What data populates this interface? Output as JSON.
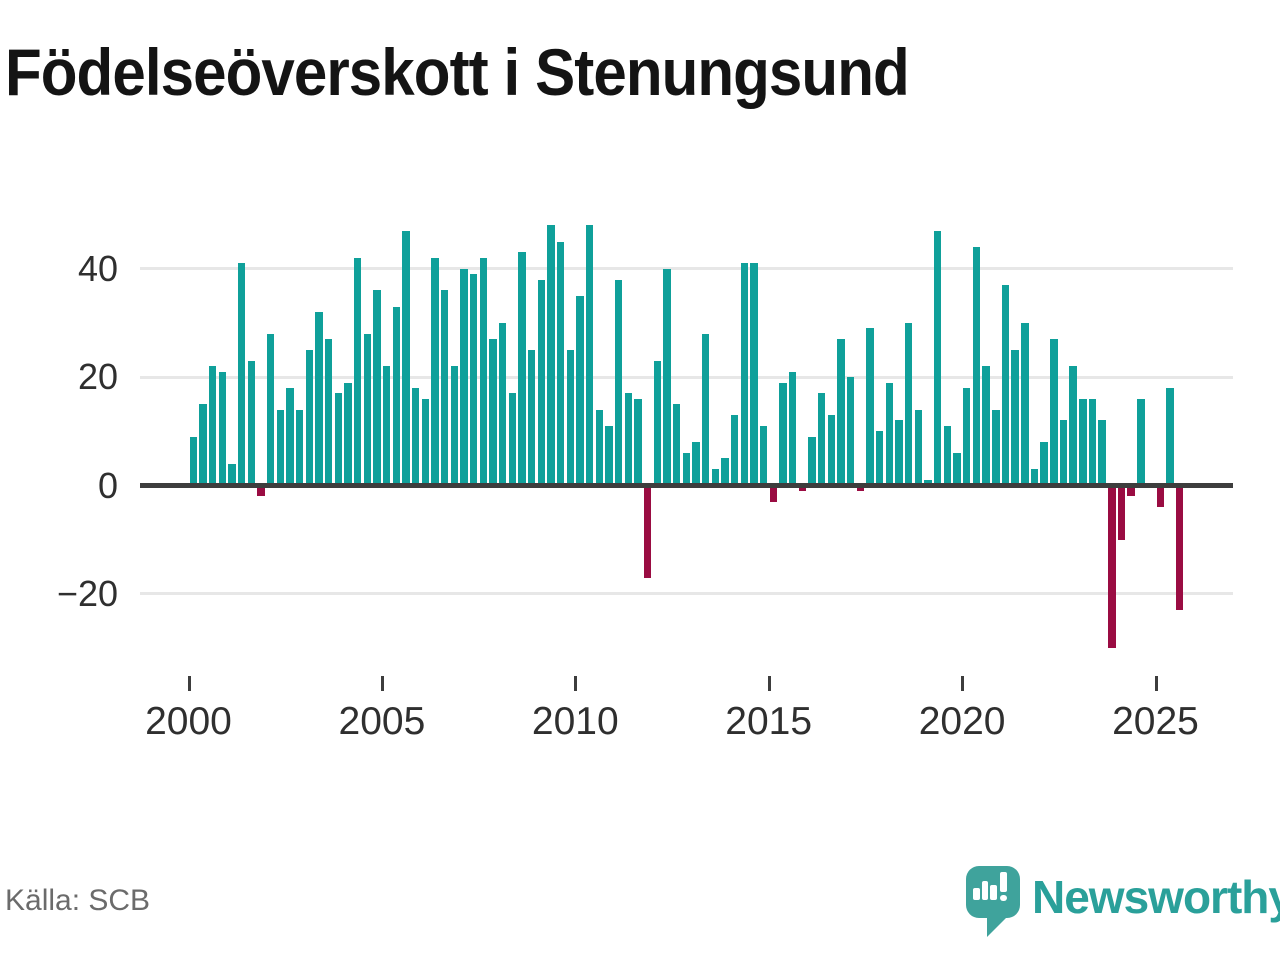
{
  "title": "Födelseöverskott i Stenungsund",
  "source": "Källa: SCB",
  "branding": {
    "wordmark": "Newsworthy",
    "logo_icon": "newsworthy-pin-barchart-logo"
  },
  "colors": {
    "positive_bar": "#0fa09a",
    "negative_bar": "#9a0c42",
    "axis_line": "#3d3d3d",
    "gridline": "#e7e7e7",
    "brand_teal": "#3fa39c",
    "wordmark_teal": "#2aa09a",
    "title_text": "#141414",
    "tick_text": "#2f2f2f",
    "source_text": "#6b6b6b"
  },
  "chart_data": {
    "type": "bar",
    "title": "Födelseöverskott i Stenungsund",
    "xlabel": "",
    "ylabel": "",
    "x_unit": "quarter",
    "x_start": "2000-Q1",
    "x_end": "2025-Q3",
    "ylim": [
      -35,
      50
    ],
    "yticks": [
      40,
      20,
      0,
      -20
    ],
    "ytick_labels": [
      "40",
      "20",
      "0",
      "−20"
    ],
    "xticks": [
      2000,
      2005,
      2010,
      2015,
      2020,
      2025
    ],
    "xtick_labels": [
      "2000",
      "2005",
      "2010",
      "2015",
      "2020",
      "2025"
    ],
    "grid": "horizontal",
    "legend": "none",
    "series_name": "Födelseöverskott per kvartal",
    "years": [
      {
        "year": 2000,
        "values": [
          9,
          15,
          22,
          21
        ]
      },
      {
        "year": 2001,
        "values": [
          4,
          41,
          23,
          -2
        ]
      },
      {
        "year": 2002,
        "values": [
          28,
          14,
          18,
          14
        ]
      },
      {
        "year": 2003,
        "values": [
          25,
          32,
          27,
          17
        ]
      },
      {
        "year": 2004,
        "values": [
          19,
          42,
          28,
          36
        ]
      },
      {
        "year": 2005,
        "values": [
          22,
          33,
          47,
          18
        ]
      },
      {
        "year": 2006,
        "values": [
          16,
          42,
          36,
          22
        ]
      },
      {
        "year": 2007,
        "values": [
          40,
          39,
          42,
          27
        ]
      },
      {
        "year": 2008,
        "values": [
          30,
          17,
          43,
          25
        ]
      },
      {
        "year": 2009,
        "values": [
          38,
          48,
          45,
          25
        ]
      },
      {
        "year": 2010,
        "values": [
          35,
          48,
          14,
          11
        ]
      },
      {
        "year": 2011,
        "values": [
          38,
          17,
          16,
          -17
        ]
      },
      {
        "year": 2012,
        "values": [
          23,
          40,
          15,
          6
        ]
      },
      {
        "year": 2013,
        "values": [
          8,
          28,
          3,
          5
        ]
      },
      {
        "year": 2014,
        "values": [
          13,
          41,
          41,
          11
        ]
      },
      {
        "year": 2015,
        "values": [
          -3,
          19,
          21,
          -1
        ]
      },
      {
        "year": 2016,
        "values": [
          9,
          17,
          13,
          27
        ]
      },
      {
        "year": 2017,
        "values": [
          20,
          -1,
          29,
          10
        ]
      },
      {
        "year": 2018,
        "values": [
          19,
          12,
          30,
          14
        ]
      },
      {
        "year": 2019,
        "values": [
          1,
          47,
          11,
          6
        ]
      },
      {
        "year": 2020,
        "values": [
          18,
          44,
          22,
          14
        ]
      },
      {
        "year": 2021,
        "values": [
          37,
          25,
          30,
          3
        ]
      },
      {
        "year": 2022,
        "values": [
          8,
          27,
          12,
          22
        ]
      },
      {
        "year": 2023,
        "values": [
          16,
          16,
          12,
          -30
        ]
      },
      {
        "year": 2024,
        "values": [
          -10,
          -2,
          16,
          0
        ]
      },
      {
        "year": 2025,
        "values": [
          -4,
          18,
          -23
        ]
      }
    ]
  }
}
